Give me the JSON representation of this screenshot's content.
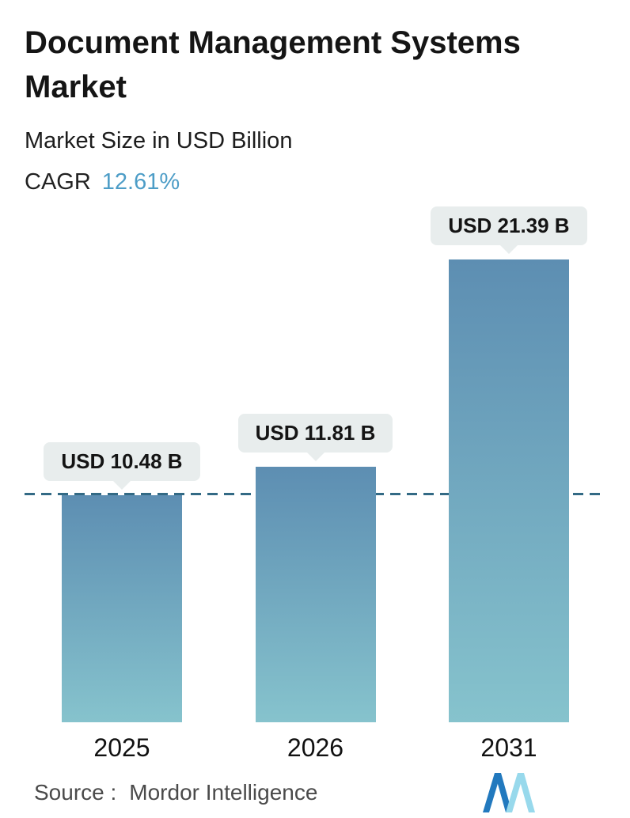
{
  "header": {
    "title": "Document Management Systems Market",
    "subtitle": "Market Size in USD Billion",
    "cagr_label": "CAGR",
    "cagr_value": "12.61%"
  },
  "chart_data": {
    "type": "bar",
    "title": "Document Management Systems Market",
    "subtitle": "Market Size in USD Billion",
    "unit": "USD Billion",
    "categories": [
      "2025",
      "2026",
      "2031"
    ],
    "values": [
      10.48,
      11.81,
      21.39
    ],
    "value_labels": [
      "USD 10.48 B",
      "USD 11.81 B",
      "USD 21.39 B"
    ],
    "cagr_percent": 12.61,
    "ylim": [
      0,
      21.39
    ],
    "grid": false,
    "legend": "none",
    "reference_line": {
      "value": 10.48,
      "style": "dashed",
      "color": "#336a85"
    },
    "bar_gradient_top": "#5d8eb2",
    "bar_gradient_bottom": "#86c3cd",
    "label_pill_bg": "#e8eded"
  },
  "colors": {
    "cagr_accent": "#4d9dc7",
    "title_text": "#151515",
    "source_text": "#4a4a4a",
    "logo_dark_blue": "#2279be",
    "logo_light_blue": "#98d9ec"
  },
  "footer": {
    "source_label": "Source :",
    "source_value": "Mordor Intelligence",
    "logo_icon": "mordor-intelligence-logo"
  }
}
